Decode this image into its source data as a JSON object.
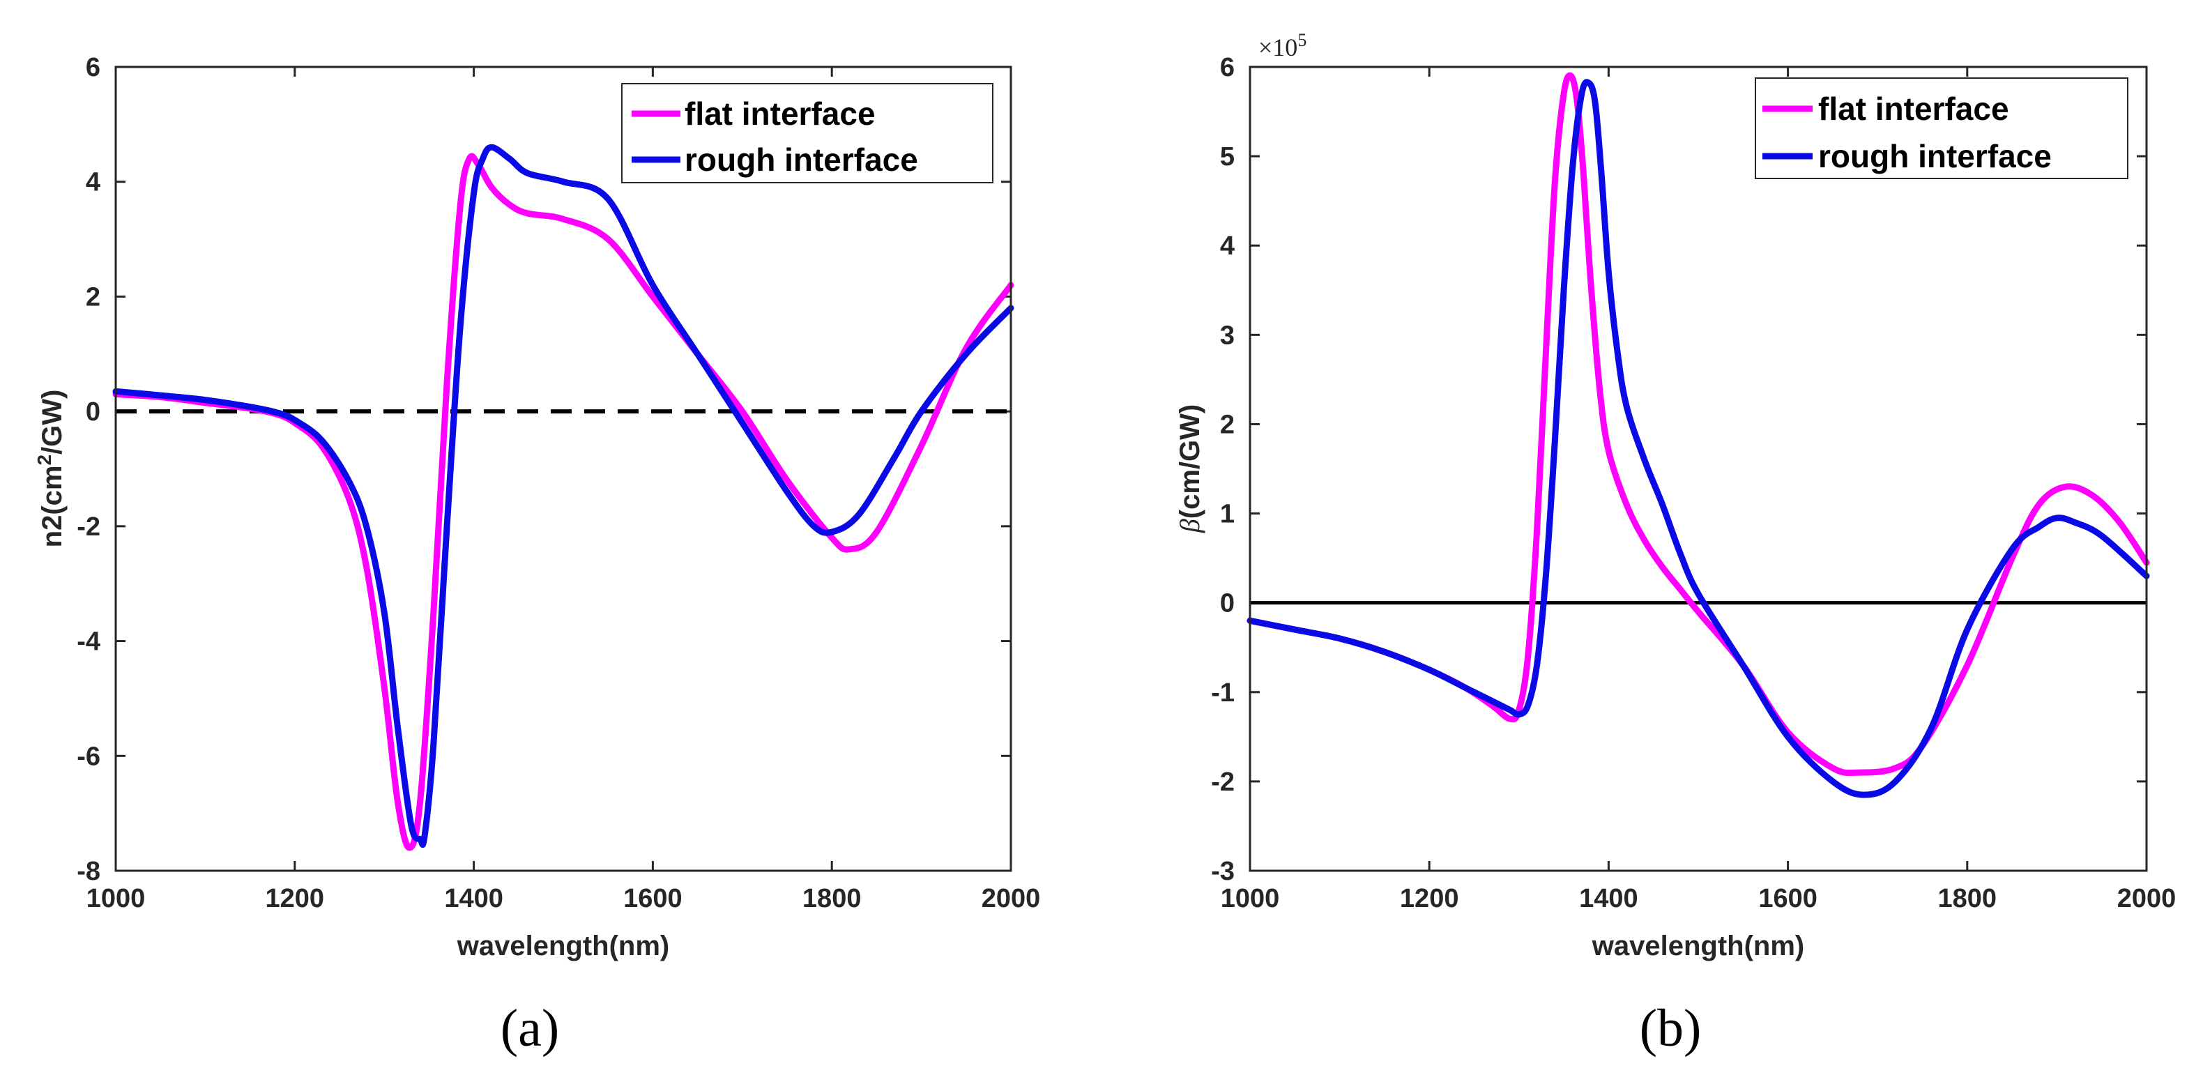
{
  "colors": {
    "flat": "#ff00ff",
    "rough": "#0a0ae6",
    "zero_line": "#000000",
    "axis": "#262626"
  },
  "chart_data": [
    {
      "id": "a",
      "type": "line",
      "caption": "(a)",
      "xlabel": "wavelength(nm)",
      "ylabel_parts": {
        "prefix": "n2(cm",
        "sup": "2",
        "suffix": "/GW)"
      },
      "xlim": [
        1000,
        2000
      ],
      "ylim": [
        -8,
        6
      ],
      "xticks": [
        1000,
        1200,
        1400,
        1600,
        1800,
        2000
      ],
      "yticks": [
        -8,
        -6,
        -4,
        -2,
        0,
        2,
        4,
        6
      ],
      "reference_line": {
        "y": 0,
        "style": "dashed"
      },
      "legend": {
        "position": "top-right",
        "entries": [
          "flat interface",
          "rough interface"
        ]
      },
      "series": [
        {
          "name": "flat interface",
          "color": "#ff00ff",
          "x": [
            1000,
            1050,
            1100,
            1150,
            1180,
            1200,
            1230,
            1260,
            1280,
            1300,
            1315,
            1328,
            1340,
            1355,
            1370,
            1385,
            1395,
            1405,
            1420,
            1440,
            1460,
            1500,
            1550,
            1600,
            1650,
            1700,
            1750,
            1800,
            1820,
            1850,
            1900,
            1950,
            2000
          ],
          "y": [
            0.3,
            0.25,
            0.15,
            0.05,
            -0.05,
            -0.2,
            -0.6,
            -1.5,
            -2.7,
            -4.8,
            -6.8,
            -7.6,
            -6.8,
            -3.5,
            0.5,
            3.6,
            4.4,
            4.3,
            3.9,
            3.6,
            3.45,
            3.35,
            3.0,
            2.0,
            1.0,
            0.0,
            -1.2,
            -2.2,
            -2.4,
            -2.1,
            -0.6,
            1.1,
            2.2
          ]
        },
        {
          "name": "rough interface",
          "color": "#0a0ae6",
          "x": [
            1000,
            1050,
            1100,
            1150,
            1180,
            1200,
            1230,
            1260,
            1280,
            1300,
            1315,
            1330,
            1340,
            1345,
            1355,
            1370,
            1385,
            1400,
            1410,
            1420,
            1440,
            1460,
            1500,
            1550,
            1600,
            1650,
            1700,
            1750,
            1780,
            1800,
            1830,
            1870,
            1900,
            1950,
            2000
          ],
          "y": [
            0.35,
            0.28,
            0.2,
            0.08,
            -0.02,
            -0.15,
            -0.5,
            -1.2,
            -2.0,
            -3.5,
            -5.5,
            -7.2,
            -7.45,
            -7.4,
            -5.8,
            -2.0,
            1.5,
            3.8,
            4.4,
            4.6,
            4.4,
            4.15,
            4.0,
            3.7,
            2.2,
            1.0,
            -0.2,
            -1.4,
            -2.0,
            -2.1,
            -1.8,
            -0.8,
            0.0,
            1.0,
            1.8
          ]
        }
      ]
    },
    {
      "id": "b",
      "type": "line",
      "caption": "(b)",
      "xlabel": "wavelength(nm)",
      "ylabel_parts": {
        "symbol": "β",
        "suffix": "(cm/GW)"
      },
      "exponent_base": "×10",
      "exponent_power": "5",
      "xlim": [
        1000,
        2000
      ],
      "ylim": [
        -3,
        6
      ],
      "xticks": [
        1000,
        1200,
        1400,
        1600,
        1800,
        2000
      ],
      "yticks": [
        -3,
        -2,
        -1,
        0,
        1,
        2,
        3,
        4,
        5,
        6
      ],
      "reference_line": {
        "y": 0,
        "style": "solid"
      },
      "legend": {
        "position": "top-right",
        "entries": [
          "flat interface",
          "rough interface"
        ]
      },
      "series": [
        {
          "name": "flat interface",
          "color": "#ff00ff",
          "x": [
            1000,
            1050,
            1100,
            1150,
            1200,
            1240,
            1270,
            1290,
            1300,
            1310,
            1320,
            1330,
            1340,
            1350,
            1358,
            1365,
            1372,
            1380,
            1390,
            1400,
            1420,
            1440,
            1460,
            1480,
            1500,
            1550,
            1600,
            1650,
            1680,
            1720,
            1750,
            1800,
            1850,
            1880,
            1910,
            1940,
            1970,
            2000
          ],
          "y": [
            -0.2,
            -0.3,
            -0.4,
            -0.55,
            -0.75,
            -0.95,
            -1.15,
            -1.3,
            -1.2,
            -0.6,
            0.8,
            2.8,
            4.7,
            5.7,
            5.9,
            5.6,
            4.8,
            3.6,
            2.4,
            1.7,
            1.1,
            0.7,
            0.4,
            0.15,
            -0.1,
            -0.7,
            -1.45,
            -1.85,
            -1.9,
            -1.85,
            -1.6,
            -0.7,
            0.5,
            1.1,
            1.3,
            1.2,
            0.9,
            0.45
          ]
        },
        {
          "name": "rough interface",
          "color": "#0a0ae6",
          "x": [
            1000,
            1050,
            1100,
            1150,
            1200,
            1240,
            1270,
            1290,
            1300,
            1310,
            1320,
            1330,
            1340,
            1350,
            1360,
            1370,
            1378,
            1385,
            1392,
            1400,
            1410,
            1420,
            1440,
            1460,
            1480,
            1500,
            1550,
            1600,
            1650,
            1685,
            1720,
            1760,
            1800,
            1850,
            1880,
            1900,
            1920,
            1950,
            2000
          ],
          "y": [
            -0.2,
            -0.3,
            -0.4,
            -0.55,
            -0.75,
            -0.95,
            -1.1,
            -1.2,
            -1.25,
            -1.15,
            -0.7,
            0.3,
            1.8,
            3.5,
            4.9,
            5.7,
            5.82,
            5.6,
            4.8,
            3.7,
            2.8,
            2.2,
            1.6,
            1.1,
            0.55,
            0.1,
            -0.7,
            -1.5,
            -2.0,
            -2.15,
            -2.0,
            -1.4,
            -0.3,
            0.6,
            0.85,
            0.95,
            0.9,
            0.75,
            0.3
          ]
        }
      ]
    }
  ]
}
